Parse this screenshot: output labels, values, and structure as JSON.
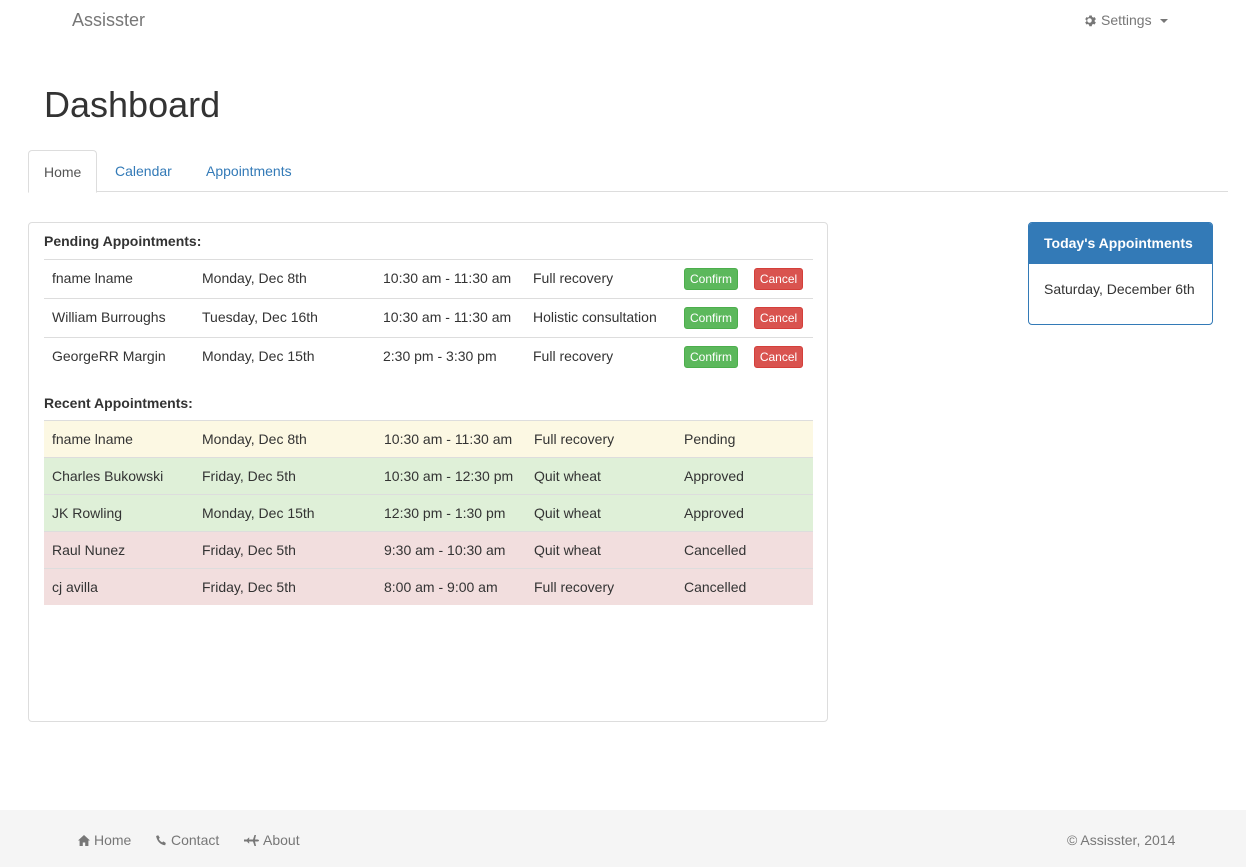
{
  "navbar": {
    "brand": "Assisster",
    "settings_label": "Settings"
  },
  "page_title": "Dashboard",
  "tabs": [
    {
      "label": "Home"
    },
    {
      "label": "Calendar"
    },
    {
      "label": "Appointments"
    }
  ],
  "pending": {
    "heading": "Pending Appointments:",
    "confirm_label": "Confirm",
    "cancel_label": "Cancel",
    "rows": [
      {
        "name": "fname lname",
        "date": "Monday, Dec 8th",
        "time": "10:30 am - 11:30 am",
        "service": "Full recovery"
      },
      {
        "name": "William Burroughs",
        "date": "Tuesday, Dec 16th",
        "time": "10:30 am - 11:30 am",
        "service": "Holistic consultation"
      },
      {
        "name": "GeorgeRR Margin",
        "date": "Monday, Dec 15th",
        "time": "2:30 pm - 3:30 pm",
        "service": "Full recovery"
      }
    ]
  },
  "recent": {
    "heading": "Recent Appointments:",
    "rows": [
      {
        "name": "fname lname",
        "date": "Monday, Dec 8th",
        "time": "10:30 am - 11:30 am",
        "service": "Full recovery",
        "status": "Pending"
      },
      {
        "name": "Charles Bukowski",
        "date": "Friday, Dec 5th",
        "time": "10:30 am - 12:30 pm",
        "service": "Quit wheat",
        "status": "Approved"
      },
      {
        "name": "JK Rowling",
        "date": "Monday, Dec 15th",
        "time": "12:30 pm - 1:30 pm",
        "service": "Quit wheat",
        "status": "Approved"
      },
      {
        "name": "Raul Nunez",
        "date": "Friday, Dec 5th",
        "time": "9:30 am - 10:30 am",
        "service": "Quit wheat",
        "status": "Cancelled"
      },
      {
        "name": "cj avilla",
        "date": "Friday, Dec 5th",
        "time": "8:00 am - 9:00 am",
        "service": "Full recovery",
        "status": "Cancelled"
      }
    ]
  },
  "today": {
    "heading": "Today's Appointments",
    "date": "Saturday, December 6th"
  },
  "footer": {
    "links": [
      {
        "label": "Home",
        "icon": "home-icon"
      },
      {
        "label": "Contact",
        "icon": "phone-icon"
      },
      {
        "label": "About",
        "icon": "plane-icon"
      }
    ],
    "copyright": "© Assisster, 2014"
  },
  "colors": {
    "primary": "#337ab7",
    "success": "#5cb85c",
    "danger": "#d9534f",
    "row_pending": "#fcf8e3",
    "row_approved": "#dff0d8",
    "row_cancelled": "#f2dede"
  }
}
